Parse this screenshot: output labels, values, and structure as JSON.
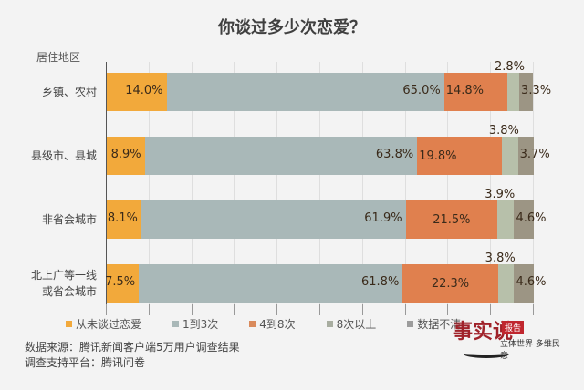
{
  "title": "你谈过多少次恋爱？",
  "y_axis_title": "居住地区",
  "chart_data": {
    "type": "bar",
    "orientation": "horizontal",
    "stacked": true,
    "title": "你谈过多少次恋爱？",
    "xlabel": "",
    "ylabel": "居住地区",
    "xlim": [
      0,
      100
    ],
    "unit": "%",
    "grid": true,
    "legend_position": "bottom",
    "categories": [
      "乡镇、农村",
      "县级市、县城",
      "非省会城市",
      "北上广等一线或省会城市"
    ],
    "series": [
      {
        "name": "从未谈过恋爱",
        "color": "#F2A93B",
        "values": [
          14.0,
          8.9,
          8.1,
          7.5
        ]
      },
      {
        "name": "1到3次",
        "color": "#A9B8B8",
        "values": [
          65.0,
          63.8,
          61.9,
          61.8
        ]
      },
      {
        "name": "4到8次",
        "color": "#E0804E",
        "values": [
          14.8,
          19.8,
          21.5,
          22.3
        ]
      },
      {
        "name": "8次以上",
        "color": "#B7C0AA",
        "values": [
          2.8,
          3.8,
          3.9,
          3.8
        ]
      },
      {
        "name": "数据不清",
        "color": "#9C9584",
        "values": [
          3.3,
          3.7,
          4.6,
          4.6
        ]
      }
    ]
  },
  "rows": [
    {
      "cat_line1": "乡镇、农村",
      "cat_line2": "",
      "labels": [
        "14.0%",
        "65.0%",
        "14.8%",
        "2.8%",
        "3.3%"
      ]
    },
    {
      "cat_line1": "县级市、县城",
      "cat_line2": "",
      "labels": [
        "8.9%",
        "63.8%",
        "19.8%",
        "3.8%",
        "3.7%"
      ]
    },
    {
      "cat_line1": "非省会城市",
      "cat_line2": "",
      "labels": [
        "8.1%",
        "61.9%",
        "21.5%",
        "3.9%",
        "4.6%"
      ]
    },
    {
      "cat_line1": "北上广等一线",
      "cat_line2": "或省会城市",
      "labels": [
        "7.5%",
        "61.8%",
        "22.3%",
        "3.8%",
        "4.6%"
      ]
    }
  ],
  "legend": [
    {
      "label": "从未谈过恋爱",
      "color": "#F2A93B"
    },
    {
      "label": "1到3次",
      "color": "#A9B8B8"
    },
    {
      "label": "4到8次",
      "color": "#D98A5C"
    },
    {
      "label": "8次以上",
      "color": "#A8ADA0"
    },
    {
      "label": "数据不清",
      "color": "#9C9C9C"
    }
  ],
  "source": {
    "line1": "数据来源：腾讯新闻客户端5万用户调查结果",
    "line2": "调查支持平台：腾讯问卷"
  },
  "watermark": {
    "logo_text": "事实说",
    "badge": "报告",
    "slogan": "立体世界 多维民意"
  }
}
